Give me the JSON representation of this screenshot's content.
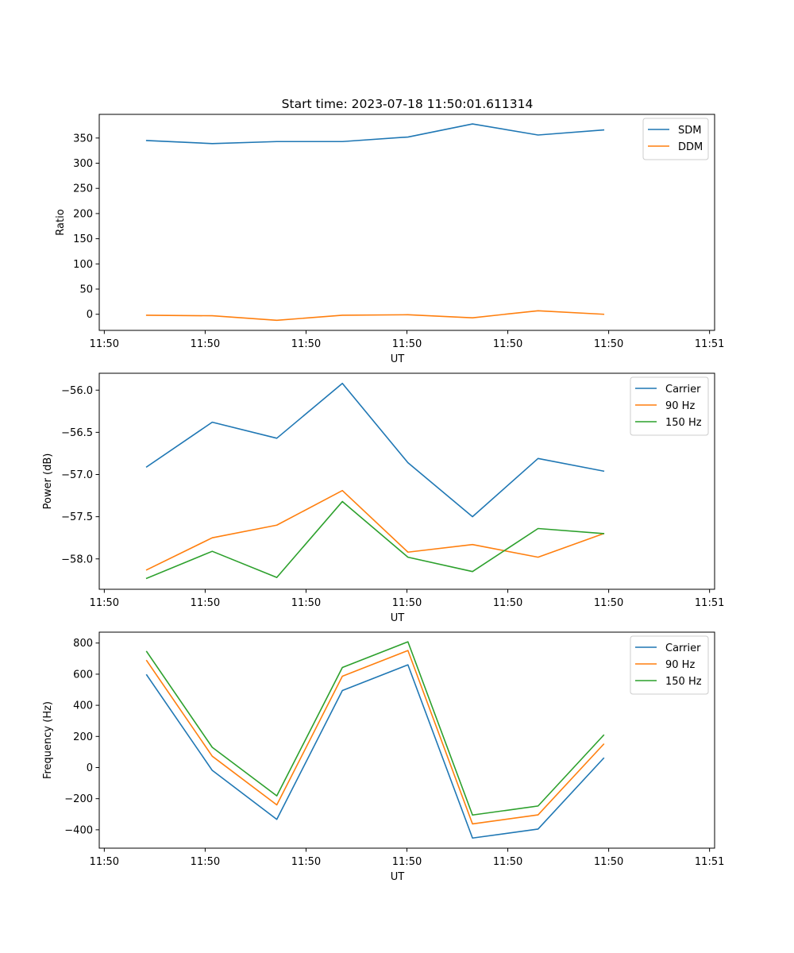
{
  "figure": {
    "title": "Start time: 2023-07-18 11:50:01.611314"
  },
  "chart_data": [
    {
      "type": "line",
      "title": "Start time: 2023-07-18 11:50:01.611314",
      "xlabel": "UT",
      "ylabel": "Ratio",
      "x": [
        0.42,
        1.07,
        1.71,
        2.36,
        3.01,
        3.65,
        4.3,
        4.95
      ],
      "x_range": [
        -0.05,
        6.05
      ],
      "x_ticks": [
        0,
        1,
        2,
        3,
        4,
        5,
        6
      ],
      "x_tick_labels": [
        "11:50",
        "11:50",
        "11:50",
        "11:50",
        "11:50",
        "11:50",
        "11:51"
      ],
      "ylim": [
        -32,
        397
      ],
      "y_ticks": [
        0,
        50,
        100,
        150,
        200,
        250,
        300,
        350
      ],
      "y_tick_labels": [
        "0",
        "50",
        "100",
        "150",
        "200",
        "250",
        "300",
        "350"
      ],
      "legend_position": "top-right",
      "series": [
        {
          "name": "SDM",
          "color": "#1f77b4",
          "values": [
            345,
            339,
            343,
            343,
            352,
            378,
            356,
            366
          ]
        },
        {
          "name": "DDM",
          "color": "#ff7f0e",
          "values": [
            -2,
            -3,
            -12,
            -2,
            -1,
            -7,
            7,
            0
          ]
        }
      ]
    },
    {
      "type": "line",
      "title": "",
      "xlabel": "UT",
      "ylabel": "Power (dB)",
      "x": [
        0.42,
        1.07,
        1.71,
        2.36,
        3.01,
        3.65,
        4.3,
        4.95
      ],
      "x_range": [
        -0.05,
        6.05
      ],
      "x_ticks": [
        0,
        1,
        2,
        3,
        4,
        5,
        6
      ],
      "x_tick_labels": [
        "11:50",
        "11:50",
        "11:50",
        "11:50",
        "11:50",
        "11:50",
        "11:51"
      ],
      "ylim": [
        -58.36,
        -55.8
      ],
      "y_ticks": [
        -58.0,
        -57.5,
        -57.0,
        -56.5,
        -56.0
      ],
      "y_tick_labels": [
        "−58.0",
        "−57.5",
        "−57.0",
        "−56.5",
        "−56.0"
      ],
      "legend_position": "top-right",
      "series": [
        {
          "name": "Carrier",
          "color": "#1f77b4",
          "values": [
            -56.91,
            -56.38,
            -56.57,
            -55.92,
            -56.86,
            -57.5,
            -56.81,
            -56.96
          ]
        },
        {
          "name": "90 Hz",
          "color": "#ff7f0e",
          "values": [
            -58.13,
            -57.75,
            -57.6,
            -57.19,
            -57.92,
            -57.83,
            -57.98,
            -57.7
          ]
        },
        {
          "name": "150 Hz",
          "color": "#2ca02c",
          "values": [
            -58.23,
            -57.91,
            -58.22,
            -57.32,
            -57.98,
            -58.15,
            -57.64,
            -57.7
          ]
        }
      ]
    },
    {
      "type": "line",
      "title": "",
      "xlabel": "UT",
      "ylabel": "Frequency (Hz)",
      "x": [
        0.42,
        1.07,
        1.71,
        2.36,
        3.01,
        3.65,
        4.3,
        4.95
      ],
      "x_range": [
        -0.05,
        6.05
      ],
      "x_ticks": [
        0,
        1,
        2,
        3,
        4,
        5,
        6
      ],
      "x_tick_labels": [
        "11:50",
        "11:50",
        "11:50",
        "11:50",
        "11:50",
        "11:50",
        "11:51"
      ],
      "ylim": [
        -518,
        870
      ],
      "y_ticks": [
        -400,
        -200,
        0,
        200,
        400,
        600,
        800
      ],
      "y_tick_labels": [
        "−400",
        "−200",
        "0",
        "200",
        "400",
        "600",
        "800"
      ],
      "legend_position": "top-right",
      "series": [
        {
          "name": "Carrier",
          "color": "#1f77b4",
          "values": [
            595,
            -18,
            -333,
            495,
            660,
            -453,
            -395,
            60
          ]
        },
        {
          "name": "90 Hz",
          "color": "#ff7f0e",
          "values": [
            687,
            73,
            -240,
            587,
            752,
            -362,
            -304,
            150
          ]
        },
        {
          "name": "150 Hz",
          "color": "#2ca02c",
          "values": [
            745,
            130,
            -182,
            643,
            808,
            -305,
            -247,
            208
          ]
        }
      ]
    }
  ]
}
